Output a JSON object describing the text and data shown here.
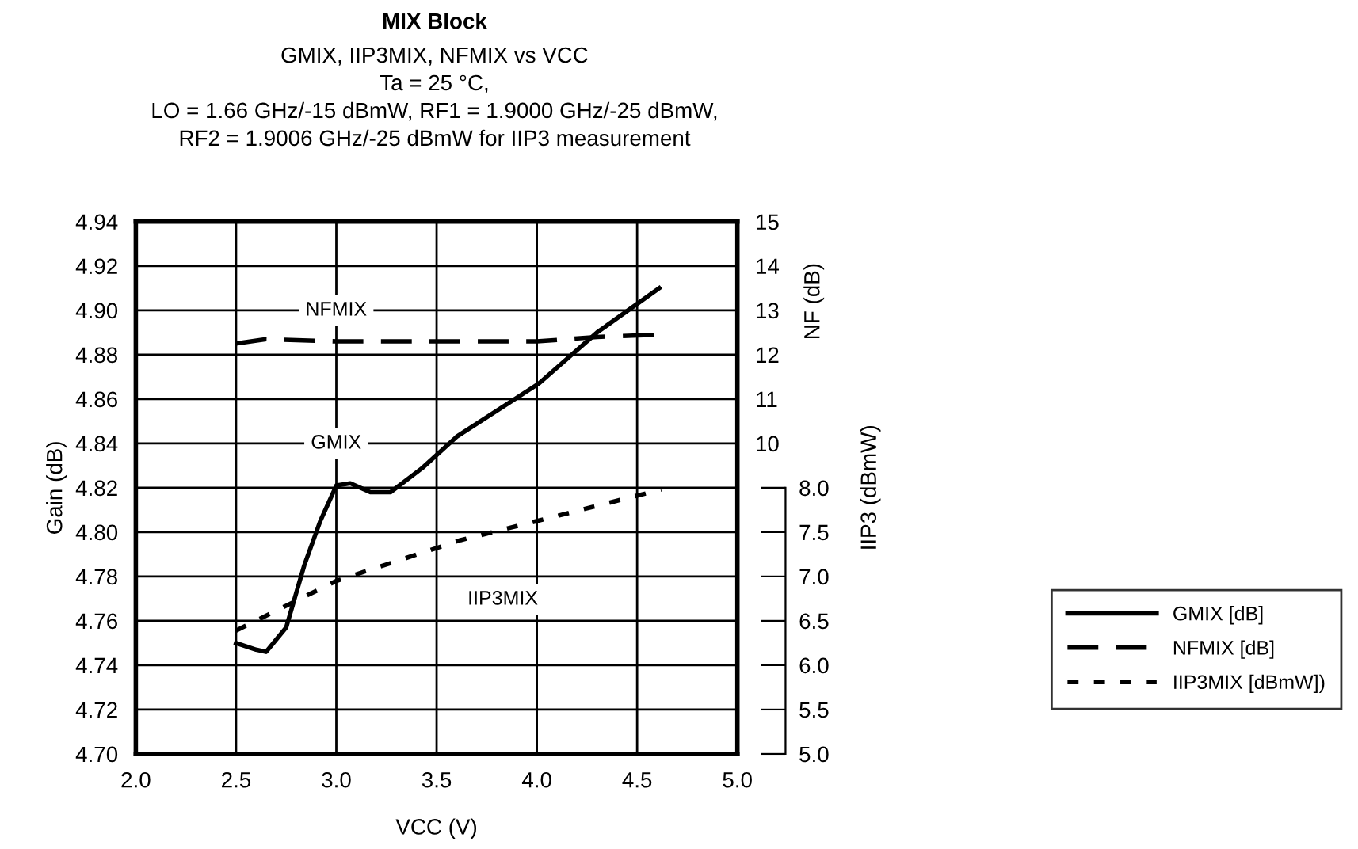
{
  "chart_data": {
    "type": "line",
    "title": "MIX Block",
    "subtitle": "GMIX, IIP3MIX, NFMIX vs VCC\nTa = 25 °C,\nLO = 1.66 GHz/-15 dBmW, RF1 = 1.9000 GHz/-25 dBmW,\nRF2 = 1.9006 GHz/-25 dBmW for IIP3 measurement",
    "xlabel": "VCC (V)",
    "ylabel": "Gain (dB)",
    "y2label": "NF (dB)",
    "y3label": "IIP3 (dBmW)",
    "xlim": [
      2.0,
      5.0
    ],
    "xticks": [
      {
        "value": 2.0,
        "label": "2.0"
      },
      {
        "value": 2.5,
        "label": "2.5"
      },
      {
        "value": 3.0,
        "label": "3.0"
      },
      {
        "value": 3.5,
        "label": "3.5"
      },
      {
        "value": 4.0,
        "label": "4.0"
      },
      {
        "value": 4.5,
        "label": "4.5"
      },
      {
        "value": 5.0,
        "label": "5.0"
      }
    ],
    "ylim": [
      4.7,
      4.94
    ],
    "yticks": [
      {
        "value": 4.7,
        "label": "4.70"
      },
      {
        "value": 4.72,
        "label": "4.72"
      },
      {
        "value": 4.74,
        "label": "4.74"
      },
      {
        "value": 4.76,
        "label": "4.76"
      },
      {
        "value": 4.78,
        "label": "4.78"
      },
      {
        "value": 4.8,
        "label": "4.80"
      },
      {
        "value": 4.82,
        "label": "4.82"
      },
      {
        "value": 4.84,
        "label": "4.84"
      },
      {
        "value": 4.86,
        "label": "4.86"
      },
      {
        "value": 4.88,
        "label": "4.88"
      },
      {
        "value": 4.9,
        "label": "4.90"
      },
      {
        "value": 4.92,
        "label": "4.92"
      },
      {
        "value": 4.94,
        "label": "4.94"
      }
    ],
    "y2lim": [
      3,
      15
    ],
    "y2ticks": [
      10,
      11,
      12,
      13,
      14,
      15
    ],
    "y3lim": [
      5,
      11
    ],
    "y3ticks": [
      {
        "value": 5,
        "label": "5.0"
      },
      {
        "value": 5.5,
        "label": "5.5"
      },
      {
        "value": 6,
        "label": "6.0"
      },
      {
        "value": 6.5,
        "label": "6.5"
      },
      {
        "value": 7,
        "label": "7.0"
      },
      {
        "value": 7.5,
        "label": "7.5"
      },
      {
        "value": 8,
        "label": "8.0"
      }
    ],
    "grid": true,
    "legend": "right",
    "series": [
      {
        "name": "GMIX [dB]",
        "color": "#000000",
        "line_style": "solid",
        "x": [
          2.5,
          2.6,
          2.65,
          2.75,
          2.84,
          2.92,
          3.0,
          3.07,
          3.17,
          3.27,
          3.43,
          3.6,
          4.01,
          4.3,
          4.61
        ],
        "values": [
          4.75,
          4.747,
          4.746,
          4.757,
          4.785,
          4.805,
          4.821,
          4.822,
          4.818,
          4.818,
          4.829,
          4.843,
          4.867,
          4.89,
          4.91
        ]
      },
      {
        "name": "NFMIX [dB]",
        "color": "#000000",
        "line_style": "dashed",
        "axis": "y2",
        "x": [
          2.5,
          2.65,
          3.0,
          3.5,
          4.0,
          4.3,
          4.6
        ],
        "values": [
          12.25,
          12.35,
          12.3,
          12.3,
          12.3,
          12.4,
          12.45
        ]
      },
      {
        "name": "IIP3MIX [dBmW])",
        "color": "#000000",
        "line_style": "dotted",
        "axis": "y3",
        "x": [
          2.5,
          3.0,
          3.62,
          4.01,
          4.62
        ],
        "values": [
          6.39,
          6.95,
          7.41,
          7.63,
          7.98
        ]
      }
    ],
    "annotations": [
      "NFMIX",
      "GMIX",
      "IIP3MIX"
    ]
  }
}
